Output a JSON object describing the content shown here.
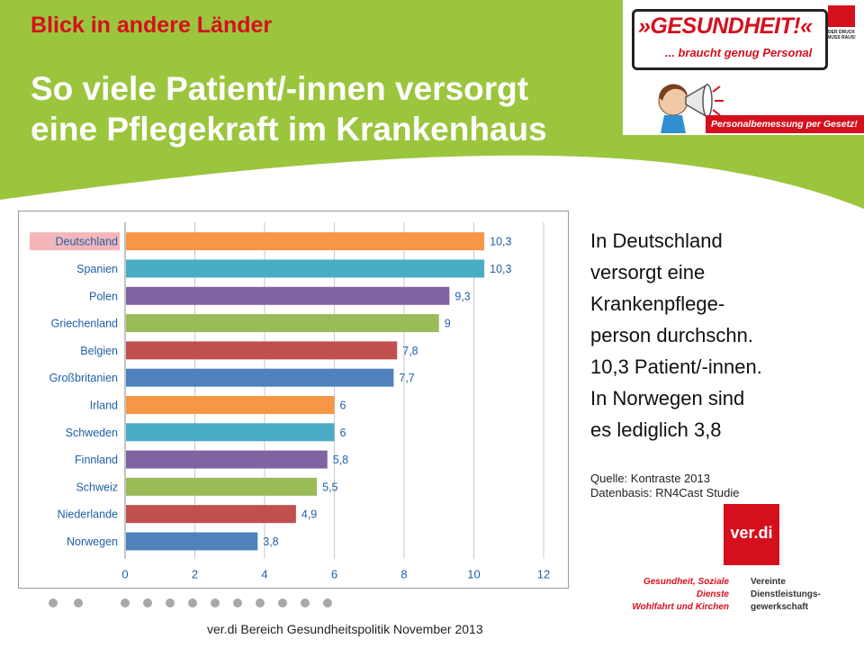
{
  "header": {
    "kicker": "Blick in andere Länder",
    "title_line1": "So viele Patient/-innen versorgt",
    "title_line2": "eine Pflegekraft im Krankenhaus",
    "background_color": "#9bc53d",
    "kicker_color": "#d5101d"
  },
  "campaign_banner": {
    "headline": "»GESUNDHEIT!«",
    "subline": "... braucht genug Personal",
    "strip": "Personalbemessung per Gesetz!",
    "corner_logo_text": "DER DRUCK MUSS RAUS!"
  },
  "chart_data": {
    "type": "bar",
    "orientation": "horizontal",
    "categories": [
      "Deutschland",
      "Spanien",
      "Polen",
      "Griechenland",
      "Belgien",
      "Großbritanien",
      "Irland",
      "Schweden",
      "Finnland",
      "Schweiz",
      "Niederlande",
      "Norwegen"
    ],
    "values": [
      10.3,
      10.3,
      9.3,
      9,
      7.8,
      7.7,
      6,
      6,
      5.8,
      5.5,
      4.9,
      3.8
    ],
    "value_labels": [
      "10,3",
      "10,3",
      "9,3",
      "9",
      "7,8",
      "7,7",
      "6",
      "6",
      "5,8",
      "5,5",
      "4,9",
      "3,8"
    ],
    "colors": [
      "#f79646",
      "#4bacc6",
      "#8064a2",
      "#9bbb59",
      "#c0504d",
      "#4f81bd",
      "#f79646",
      "#4bacc6",
      "#8064a2",
      "#9bbb59",
      "#c0504d",
      "#4f81bd"
    ],
    "highlight_category": "Deutschland",
    "highlight_color": "#f4b6b9",
    "x_ticks": [
      "0",
      "2",
      "4",
      "6",
      "8",
      "10",
      "12"
    ],
    "xlim": [
      0,
      12
    ],
    "grid": "vertical",
    "label_color": "#1f5fa8"
  },
  "body_text": {
    "lines": [
      "In Deutschland",
      "versorgt eine",
      "Krankenpflege-",
      "person durchschn.",
      "10,3 Patient/-innen.",
      "In Norwegen sind",
      "es lediglich 3,8"
    ],
    "source_line1": "Quelle: Kontraste 2013",
    "source_line2": "Datenbasis: RN4Cast Studie"
  },
  "verdi": {
    "logo_text": "ver.di",
    "tagline_left": [
      "Gesundheit, Soziale Dienste",
      "Wohlfahrt und Kirchen"
    ],
    "tagline_right": [
      "Vereinte",
      "Dienstleistungs-",
      "gewerkschaft"
    ],
    "brand_color": "#d5101d"
  },
  "footer": {
    "text": "ver.di Bereich Gesundheitspolitik   November 2013"
  }
}
